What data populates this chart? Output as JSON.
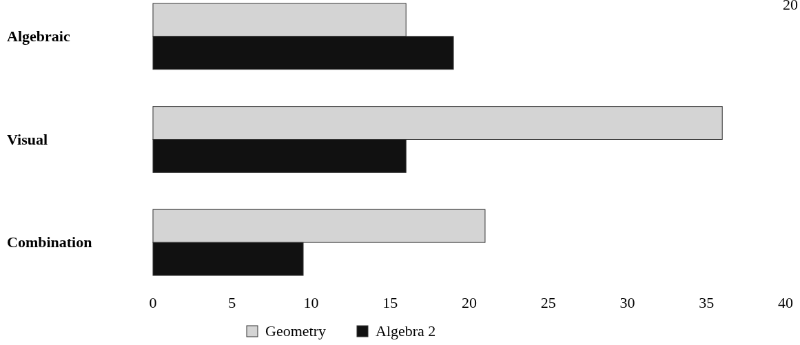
{
  "chart_data": {
    "type": "bar",
    "orientation": "horizontal",
    "categories": [
      "Algebraic",
      "Visual",
      "Combination"
    ],
    "series": [
      {
        "name": "Geometry",
        "color": "#d4d4d4",
        "values": [
          16,
          36,
          21
        ]
      },
      {
        "name": "Algebra 2",
        "color": "#111111",
        "values": [
          19,
          16,
          9.5
        ]
      }
    ],
    "xlim": [
      0,
      40
    ],
    "xticks": [
      0,
      5,
      10,
      15,
      20,
      25,
      30,
      35,
      40
    ],
    "legend": "bottom",
    "grid": false,
    "annotations": [
      "20"
    ]
  }
}
